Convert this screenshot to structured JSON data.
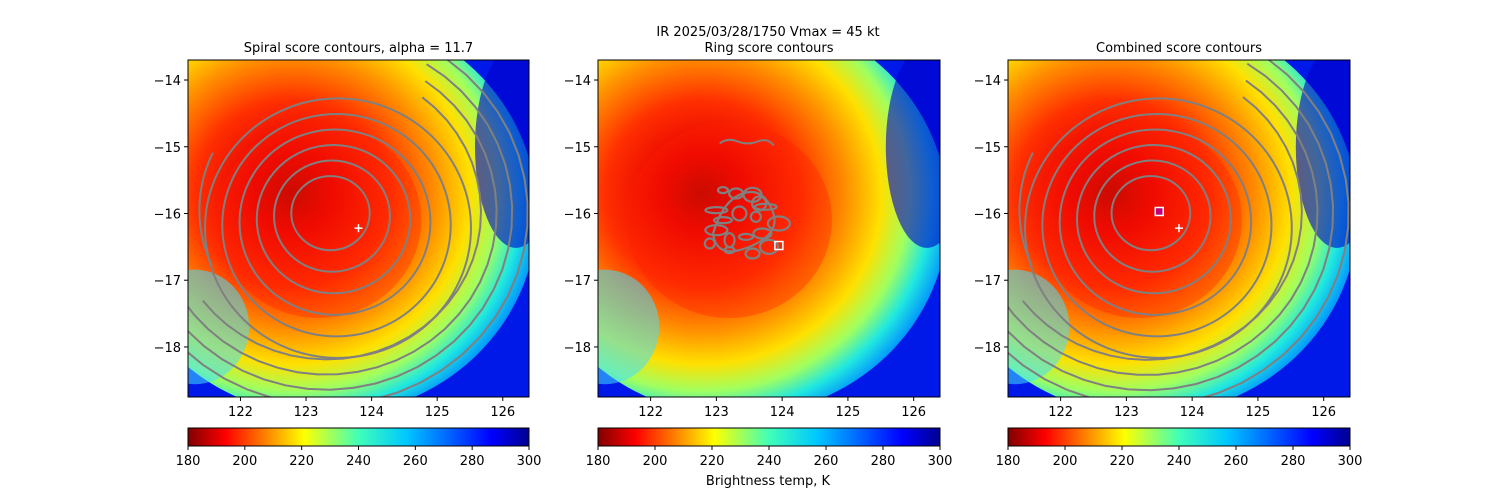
{
  "suptitle": "IR  2025/03/28/1750    Vmax = 45 kt",
  "colorbar": {
    "label": "Brightness temp, K",
    "range": [
      180,
      300
    ],
    "ticks": [
      180,
      200,
      220,
      240,
      260,
      280,
      300
    ],
    "colormap": "jet_r"
  },
  "chart_data": [
    {
      "type": "heatmap",
      "title": "Spiral score contours, alpha = 11.7",
      "xlim": [
        121.2,
        126.4
      ],
      "ylim": [
        -18.75,
        -13.7
      ],
      "xticks": [
        122,
        123,
        124,
        125,
        126
      ],
      "yticks": [
        -14,
        -15,
        -16,
        -17,
        -18
      ],
      "field": "Brightness temperature (K)",
      "contours": "spiral score",
      "center_guess": {
        "marker": "plus",
        "lon": 123.8,
        "lat": -16.22
      },
      "contour_color": "#808080"
    },
    {
      "type": "heatmap",
      "title": "Ring score contours",
      "xlim": [
        121.2,
        126.4
      ],
      "ylim": [
        -18.75,
        -13.7
      ],
      "xticks": [
        122,
        123,
        124,
        125,
        126
      ],
      "yticks": [
        -14,
        -15,
        -16,
        -17,
        -18
      ],
      "field": "Brightness temperature (K)",
      "contours": "ring score",
      "best_ring": {
        "marker": "square",
        "lon": 123.95,
        "lat": -16.48
      },
      "contour_color": "#808080"
    },
    {
      "type": "heatmap",
      "title": "Combined score contours",
      "xlim": [
        121.2,
        126.4
      ],
      "ylim": [
        -18.75,
        -13.7
      ],
      "xticks": [
        122,
        123,
        124,
        125,
        126
      ],
      "yticks": [
        -14,
        -15,
        -16,
        -17,
        -18
      ],
      "field": "Brightness temperature (K)",
      "contours": "combined score",
      "center_guess": {
        "marker": "plus",
        "lon": 123.8,
        "lat": -16.22
      },
      "best_center": {
        "marker": "square",
        "lon": 123.5,
        "lat": -15.97,
        "color": "#c0007a"
      },
      "contour_color": "#808080"
    }
  ]
}
